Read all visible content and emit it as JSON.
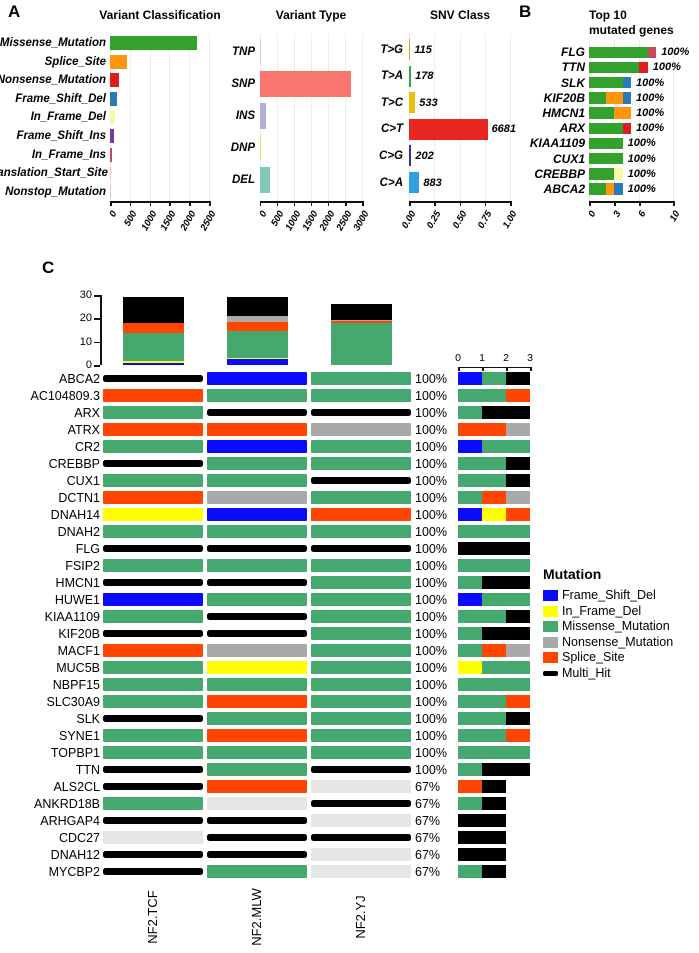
{
  "panel_labels": {
    "a": "A",
    "b": "B",
    "c": "C"
  },
  "mutation_colors": {
    "Frame_Shift_Del": "#0a0aff",
    "In_Frame_Del": "#ffff00",
    "Missense_Mutation": "#45a96f",
    "Nonsense_Mutation": "#a9a9a9",
    "Splice_Site": "#ff4500",
    "Multi_Hit": "#000000",
    "none": "#e6e6e6"
  },
  "classification_colors": {
    "Missense_Mutation": "#33a22c",
    "Splice_Site": "#ff950e",
    "Nonsense_Mutation": "#df1d1f",
    "Frame_Shift_Del": "#2a7ab8",
    "In_Frame_Del": "#f8f8a6",
    "Frame_Shift_Ins": "#79399b",
    "In_Frame_Ins": "#c9485b",
    "Translation_Start_Site": "#f4c39a",
    "Nonstop_Mutation": "#f2b8c6"
  },
  "chart_data": [
    {
      "id": "variant_classification",
      "type": "bar",
      "orientation": "horizontal",
      "title": "Variant Classification",
      "categories": [
        "Missense_Mutation",
        "Splice_Site",
        "Nonsense_Mutation",
        "Frame_Shift_Del",
        "In_Frame_Del",
        "Frame_Shift_Ins",
        "In_Frame_Ins",
        "Translation_Start_Site",
        "Nonstop_Mutation"
      ],
      "values": [
        2200,
        430,
        215,
        165,
        115,
        110,
        60,
        12,
        5
      ],
      "colors": [
        "#33a22c",
        "#ff950e",
        "#df1d1f",
        "#2a7ab8",
        "#f8f8a6",
        "#79399b",
        "#c9485b",
        "#f4c39a",
        "#f2b8c6"
      ],
      "xlim": [
        0,
        2500
      ],
      "xticks": [
        "0",
        "500",
        "1000",
        "1500",
        "2000",
        "2500"
      ],
      "xtick_values": [
        0,
        500,
        1000,
        1500,
        2000,
        2500
      ]
    },
    {
      "id": "variant_type",
      "type": "bar",
      "orientation": "horizontal",
      "title": "Variant Type",
      "categories": [
        "TNP",
        "SNP",
        "INS",
        "DNP",
        "DEL"
      ],
      "values": [
        12,
        2670,
        190,
        18,
        320
      ],
      "colors": [
        "#c9c9c9",
        "#f8766d",
        "#b4aed5",
        "#e2e26b",
        "#7fc9b6"
      ],
      "xlim": [
        0,
        3000
      ],
      "xticks": [
        "0",
        "500",
        "1000",
        "1500",
        "2000",
        "2500",
        "3000"
      ],
      "xtick_values": [
        0,
        500,
        1000,
        1500,
        2000,
        2500,
        3000
      ]
    },
    {
      "id": "snv_class",
      "type": "bar",
      "orientation": "horizontal",
      "title": "SNV Class",
      "categories": [
        "T>G",
        "T>A",
        "T>C",
        "C>T",
        "C>G",
        "C>A"
      ],
      "values": [
        115,
        178,
        533,
        6681,
        202,
        883
      ],
      "value_labels": [
        "115",
        "178",
        "533",
        "6681",
        "202",
        "883"
      ],
      "fractions": [
        0.013,
        0.021,
        0.062,
        0.778,
        0.024,
        0.103
      ],
      "colors": [
        "#f0a30f",
        "#3ba44a",
        "#edbe0a",
        "#e6261f",
        "#35349b",
        "#2f9fe0"
      ],
      "xlim": [
        0,
        1
      ],
      "xticks": [
        "0.00",
        "0.25",
        "0.50",
        "0.75",
        "1.00"
      ],
      "xtick_values": [
        0,
        0.25,
        0.5,
        0.75,
        1
      ]
    },
    {
      "id": "top10_mutated_genes",
      "type": "bar-stacked",
      "title_line1": "Top 10",
      "title_line2": "mutated genes",
      "categories": [
        "FLG",
        "TTN",
        "SLK",
        "KIF20B",
        "HMCN1",
        "ARX",
        "KIAA1109",
        "CUX1",
        "CREBBP",
        "ABCA2"
      ],
      "segments": [
        [
          [
            "Missense_Mutation",
            7
          ],
          [
            "In_Frame_Ins",
            1
          ]
        ],
        [
          [
            "Missense_Mutation",
            6
          ],
          [
            "Nonsense_Mutation",
            1
          ]
        ],
        [
          [
            "Missense_Mutation",
            4
          ],
          [
            "Frame_Shift_Del",
            1
          ]
        ],
        [
          [
            "Missense_Mutation",
            2
          ],
          [
            "Splice_Site",
            2
          ],
          [
            "Frame_Shift_Del",
            1
          ]
        ],
        [
          [
            "Missense_Mutation",
            3
          ],
          [
            "Splice_Site",
            2
          ]
        ],
        [
          [
            "Missense_Mutation",
            4
          ],
          [
            "Nonsense_Mutation",
            1
          ]
        ],
        [
          [
            "Missense_Mutation",
            4
          ]
        ],
        [
          [
            "Missense_Mutation",
            4
          ]
        ],
        [
          [
            "Missense_Mutation",
            3
          ],
          [
            "In_Frame_Del",
            1
          ]
        ],
        [
          [
            "Missense_Mutation",
            2
          ],
          [
            "Splice_Site",
            1
          ],
          [
            "Frame_Shift_Del",
            1
          ]
        ]
      ],
      "percent_labels": [
        "100%",
        "100%",
        "100%",
        "100%",
        "100%",
        "100%",
        "100%",
        "100%",
        "100%",
        "100%"
      ],
      "xlim": [
        0,
        10
      ],
      "xticks": [
        "0",
        "3",
        "6",
        "10"
      ],
      "xtick_values": [
        0,
        3,
        6,
        10
      ]
    },
    {
      "id": "mutations_per_sample",
      "type": "stacked-column",
      "samples": [
        "NF2.TCF",
        "NF2.MLW",
        "NF2.YJ"
      ],
      "stack_order": [
        "Frame_Shift_Del",
        "In_Frame_Del",
        "Missense_Mutation",
        "Splice_Site",
        "Nonsense_Mutation",
        "Multi_Hit"
      ],
      "stacks": [
        {
          "Frame_Shift_Del": 1,
          "In_Frame_Del": 0.6,
          "Missense_Mutation": 12,
          "Splice_Site": 4.4,
          "Nonsense_Mutation": 0,
          "Multi_Hit": 11
        },
        {
          "Frame_Shift_Del": 2.5,
          "In_Frame_Del": 0.5,
          "Missense_Mutation": 11.5,
          "Splice_Site": 4,
          "Nonsense_Mutation": 2.5,
          "Multi_Hit": 8
        },
        {
          "Frame_Shift_Del": 0,
          "In_Frame_Del": 0,
          "Missense_Mutation": 18,
          "Splice_Site": 0.8,
          "Nonsense_Mutation": 0.5,
          "Multi_Hit": 6.7
        }
      ],
      "ylim": [
        0,
        30
      ],
      "yticks": [
        "0",
        "10",
        "20",
        "30"
      ],
      "ytick_values": [
        0,
        10,
        20,
        30
      ]
    },
    {
      "id": "oncoplot",
      "type": "heatmap",
      "samples": [
        "NF2.TCF",
        "NF2.MLW",
        "NF2.YJ"
      ],
      "legend_title": "Mutation",
      "legend_items": [
        "Frame_Shift_Del",
        "In_Frame_Del",
        "Missense_Mutation",
        "Nonsense_Mutation",
        "Splice_Site",
        "Multi_Hit"
      ],
      "count_axis_ticks": [
        "0",
        "1",
        "2",
        "3"
      ],
      "count_axis_values": [
        0,
        1,
        2,
        3
      ],
      "stack_order": [
        "Frame_Shift_Del",
        "In_Frame_Del",
        "Missense_Mutation",
        "Splice_Site",
        "Nonsense_Mutation",
        "Multi_Hit"
      ],
      "rows": [
        {
          "gene": "ABCA2",
          "cells": [
            "Multi_Hit",
            "Frame_Shift_Del",
            "Missense_Mutation"
          ],
          "percent": "100%"
        },
        {
          "gene": "AC104809.3",
          "cells": [
            "Splice_Site",
            "Missense_Mutation",
            "Missense_Mutation"
          ],
          "percent": "100%"
        },
        {
          "gene": "ARX",
          "cells": [
            "Missense_Mutation",
            "Multi_Hit",
            "Multi_Hit"
          ],
          "percent": "100%"
        },
        {
          "gene": "ATRX",
          "cells": [
            "Splice_Site",
            "Splice_Site",
            "Nonsense_Mutation"
          ],
          "percent": "100%"
        },
        {
          "gene": "CR2",
          "cells": [
            "Missense_Mutation",
            "Frame_Shift_Del",
            "Missense_Mutation"
          ],
          "percent": "100%"
        },
        {
          "gene": "CREBBP",
          "cells": [
            "Multi_Hit",
            "Missense_Mutation",
            "Missense_Mutation"
          ],
          "percent": "100%"
        },
        {
          "gene": "CUX1",
          "cells": [
            "Missense_Mutation",
            "Missense_Mutation",
            "Multi_Hit"
          ],
          "percent": "100%"
        },
        {
          "gene": "DCTN1",
          "cells": [
            "Splice_Site",
            "Nonsense_Mutation",
            "Missense_Mutation"
          ],
          "percent": "100%"
        },
        {
          "gene": "DNAH14",
          "cells": [
            "In_Frame_Del",
            "Frame_Shift_Del",
            "Splice_Site"
          ],
          "percent": "100%"
        },
        {
          "gene": "DNAH2",
          "cells": [
            "Missense_Mutation",
            "Missense_Mutation",
            "Missense_Mutation"
          ],
          "percent": "100%"
        },
        {
          "gene": "FLG",
          "cells": [
            "Multi_Hit",
            "Multi_Hit",
            "Multi_Hit"
          ],
          "percent": "100%"
        },
        {
          "gene": "FSIP2",
          "cells": [
            "Missense_Mutation",
            "Missense_Mutation",
            "Missense_Mutation"
          ],
          "percent": "100%"
        },
        {
          "gene": "HMCN1",
          "cells": [
            "Multi_Hit",
            "Multi_Hit",
            "Missense_Mutation"
          ],
          "percent": "100%"
        },
        {
          "gene": "HUWE1",
          "cells": [
            "Frame_Shift_Del",
            "Missense_Mutation",
            "Missense_Mutation"
          ],
          "percent": "100%"
        },
        {
          "gene": "KIAA1109",
          "cells": [
            "Missense_Mutation",
            "Multi_Hit",
            "Missense_Mutation"
          ],
          "percent": "100%"
        },
        {
          "gene": "KIF20B",
          "cells": [
            "Multi_Hit",
            "Multi_Hit",
            "Missense_Mutation"
          ],
          "percent": "100%"
        },
        {
          "gene": "MACF1",
          "cells": [
            "Splice_Site",
            "Nonsense_Mutation",
            "Missense_Mutation"
          ],
          "percent": "100%"
        },
        {
          "gene": "MUC5B",
          "cells": [
            "Missense_Mutation",
            "In_Frame_Del",
            "Missense_Mutation"
          ],
          "percent": "100%"
        },
        {
          "gene": "NBPF15",
          "cells": [
            "Missense_Mutation",
            "Missense_Mutation",
            "Missense_Mutation"
          ],
          "percent": "100%"
        },
        {
          "gene": "SLC30A9",
          "cells": [
            "Missense_Mutation",
            "Splice_Site",
            "Missense_Mutation"
          ],
          "percent": "100%"
        },
        {
          "gene": "SLK",
          "cells": [
            "Multi_Hit",
            "Missense_Mutation",
            "Missense_Mutation"
          ],
          "percent": "100%"
        },
        {
          "gene": "SYNE1",
          "cells": [
            "Missense_Mutation",
            "Splice_Site",
            "Missense_Mutation"
          ],
          "percent": "100%"
        },
        {
          "gene": "TOPBP1",
          "cells": [
            "Missense_Mutation",
            "Missense_Mutation",
            "Missense_Mutation"
          ],
          "percent": "100%"
        },
        {
          "gene": "TTN",
          "cells": [
            "Multi_Hit",
            "Missense_Mutation",
            "Multi_Hit"
          ],
          "percent": "100%"
        },
        {
          "gene": "ALS2CL",
          "cells": [
            "Multi_Hit",
            "Splice_Site",
            "none"
          ],
          "percent": "67%"
        },
        {
          "gene": "ANKRD18B",
          "cells": [
            "Missense_Mutation",
            "none",
            "Multi_Hit"
          ],
          "percent": "67%"
        },
        {
          "gene": "ARHGAP4",
          "cells": [
            "Multi_Hit",
            "Multi_Hit",
            "none"
          ],
          "percent": "67%"
        },
        {
          "gene": "CDC27",
          "cells": [
            "none",
            "Multi_Hit",
            "Multi_Hit"
          ],
          "percent": "67%"
        },
        {
          "gene": "DNAH12",
          "cells": [
            "Multi_Hit",
            "Multi_Hit",
            "none"
          ],
          "percent": "67%"
        },
        {
          "gene": "MYCBP2",
          "cells": [
            "Multi_Hit",
            "Missense_Mutation",
            "none"
          ],
          "percent": "67%"
        }
      ]
    }
  ]
}
